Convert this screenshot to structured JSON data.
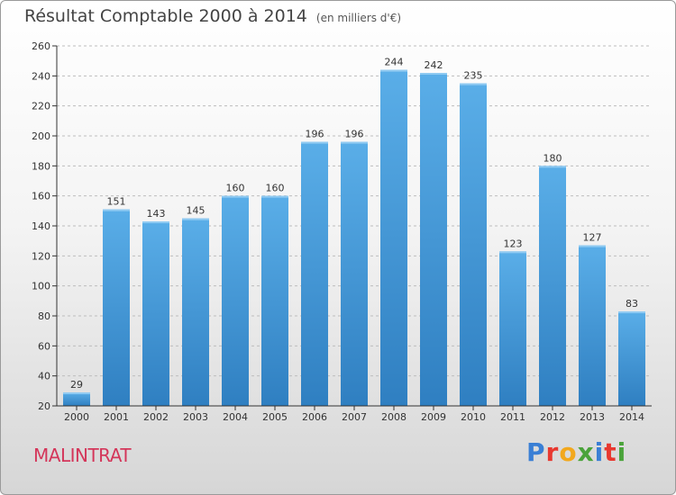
{
  "header": {
    "title": "Résultat Comptable 2000 à 2014",
    "subtitle": "(en milliers d'€)"
  },
  "footer": {
    "commune": "MALINTRAT",
    "logo": "Proxiti",
    "logo_letter_colors": [
      "#3a7fd5",
      "#e8382f",
      "#f2a81d",
      "#4aa33a",
      "#3a7fd5",
      "#e8382f",
      "#4aa33a"
    ]
  },
  "colors": {
    "bar_top": "#5aaee8",
    "bar_bottom": "#2f7fc1",
    "grid": "#bdbdbd",
    "axis": "#333333"
  },
  "chart_data": {
    "type": "bar",
    "title": "Résultat Comptable 2000 à 2014",
    "subtitle": "(en milliers d'€)",
    "xlabel": "",
    "ylabel": "",
    "categories": [
      "2000",
      "2001",
      "2002",
      "2003",
      "2004",
      "2005",
      "2006",
      "2007",
      "2008",
      "2009",
      "2010",
      "2011",
      "2012",
      "2013",
      "2014"
    ],
    "values": [
      29,
      151,
      143,
      145,
      160,
      160,
      196,
      196,
      244,
      242,
      235,
      123,
      180,
      127,
      83
    ],
    "ylim": [
      20,
      260
    ],
    "yticks": [
      20,
      40,
      60,
      80,
      100,
      120,
      140,
      160,
      180,
      200,
      220,
      240,
      260
    ],
    "grid": "horizontal dashed",
    "legend": "none"
  }
}
